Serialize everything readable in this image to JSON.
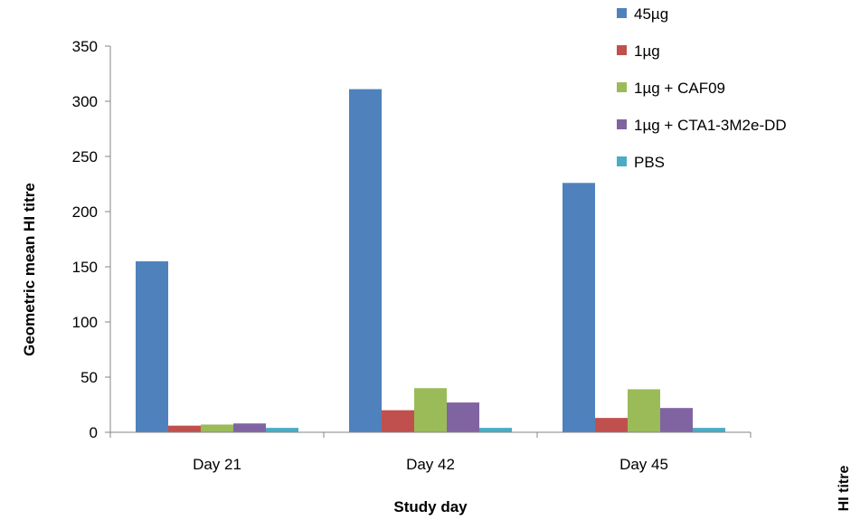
{
  "chart_data": {
    "type": "bar",
    "categories": [
      "Day 21",
      "Day 42",
      "Day 45"
    ],
    "series": [
      {
        "name": "45µg",
        "color": "#4F81BD",
        "values": [
          155,
          311,
          226
        ]
      },
      {
        "name": "1µg",
        "color": "#C0504D",
        "values": [
          6,
          20,
          13
        ]
      },
      {
        "name": "1µg + CAF09",
        "color": "#9BBB59",
        "values": [
          7,
          40,
          39
        ]
      },
      {
        "name": "1µg + CTA1-3M2e-DD",
        "color": "#8064A2",
        "values": [
          8,
          27,
          22
        ]
      },
      {
        "name": "PBS",
        "color": "#4BACC6",
        "values": [
          4,
          4,
          4
        ]
      }
    ],
    "xlabel": "Study day",
    "ylabel": "Geometric mean HI titre",
    "ylim": [
      0,
      350
    ],
    "yticks": [
      0,
      50,
      100,
      150,
      200,
      250,
      300,
      350
    ],
    "grid": false,
    "legend_position": "top-right",
    "clipped_edge_label": "HI titre"
  }
}
